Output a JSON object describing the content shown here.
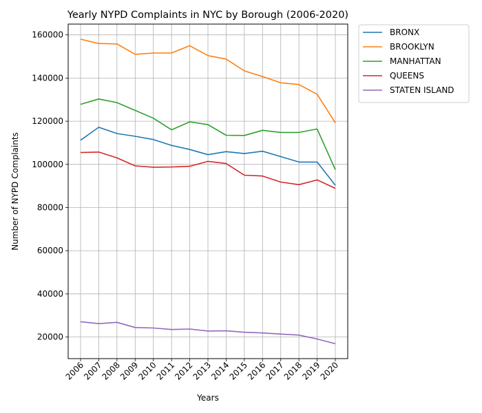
{
  "chart_data": {
    "type": "line",
    "title": "Yearly NYPD Complaints in NYC by Borough (2006-2020)",
    "xlabel": "Years",
    "ylabel": "Number of NYPD Complaints",
    "x": [
      "2006",
      "2007",
      "2008",
      "2009",
      "2010",
      "2011",
      "2012",
      "2013",
      "2014",
      "2015",
      "2016",
      "2017",
      "2018",
      "2019",
      "2020"
    ],
    "ylim": [
      10000,
      165000
    ],
    "yticks": [
      20000,
      40000,
      60000,
      80000,
      100000,
      120000,
      140000,
      160000
    ],
    "grid": true,
    "legend_position": "outside-top-right",
    "series": [
      {
        "name": "BRONX",
        "color": "#1f77b4",
        "values": [
          111200,
          117200,
          114300,
          113000,
          111500,
          108800,
          106900,
          104500,
          105900,
          105000,
          106100,
          103600,
          101100,
          101100,
          90300
        ]
      },
      {
        "name": "BROOKLYN",
        "color": "#ff7f0e",
        "values": [
          158000,
          156000,
          155800,
          151000,
          151600,
          151600,
          155000,
          150400,
          148800,
          143300,
          140700,
          137800,
          137000,
          132500,
          119200
        ]
      },
      {
        "name": "MANHATTAN",
        "color": "#2ca02c",
        "values": [
          127800,
          130300,
          128600,
          125000,
          121400,
          116000,
          119700,
          118400,
          113500,
          113400,
          115800,
          114800,
          114800,
          116400,
          97500
        ]
      },
      {
        "name": "QUEENS",
        "color": "#d62728",
        "values": [
          105500,
          105700,
          103000,
          99300,
          98700,
          98800,
          99100,
          101400,
          100400,
          95000,
          94600,
          91800,
          90600,
          92800,
          88900
        ]
      },
      {
        "name": "STATEN ISLAND",
        "color": "#9467bd",
        "values": [
          27100,
          26200,
          26800,
          24400,
          24200,
          23500,
          23700,
          22800,
          22900,
          22200,
          21900,
          21400,
          20900,
          19100,
          16900
        ]
      }
    ]
  }
}
